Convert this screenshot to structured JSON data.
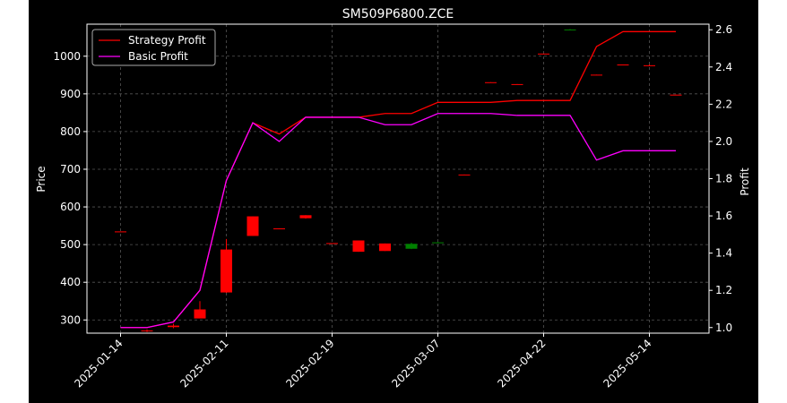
{
  "chart_data": {
    "type": "candlestick+line",
    "title": "SM509P6800.ZCE",
    "xlabel": "",
    "ylabel_left": "Price",
    "ylabel_right": "Profit",
    "ylim_left": [
      265,
      1085
    ],
    "ylim_right": [
      0.97,
      2.63
    ],
    "left_ticks": [
      300,
      400,
      500,
      600,
      700,
      800,
      900,
      1000
    ],
    "right_ticks": [
      1.0,
      1.2,
      1.4,
      1.6,
      1.8,
      2.0,
      2.2,
      2.4,
      2.6
    ],
    "x_tick_labels": [
      "2025-01-14",
      "2025-02-11",
      "2025-02-19",
      "2025-03-07",
      "2025-04-22",
      "2025-05-14"
    ],
    "x_tick_indices": [
      0,
      4,
      8,
      12,
      16,
      20
    ],
    "grid": true,
    "legend_position": "top-left",
    "colors": {
      "background": "#000000",
      "up": "#008000",
      "down": "#ff0000",
      "strategy": "#ff0000",
      "basic": "#ff00ff",
      "grid": "#555555"
    },
    "candles": [
      {
        "o": 535,
        "h": 535,
        "l": 535,
        "c": 534
      },
      {
        "o": 272,
        "h": 275,
        "l": 268,
        "c": 270
      },
      {
        "o": 285,
        "h": 290,
        "l": 278,
        "c": 281
      },
      {
        "o": 328,
        "h": 350,
        "l": 305,
        "c": 304
      },
      {
        "o": 487,
        "h": 515,
        "l": 372,
        "c": 373
      },
      {
        "o": 575,
        "h": 575,
        "l": 523,
        "c": 523
      },
      {
        "o": 543,
        "h": 543,
        "l": 542,
        "c": 542
      },
      {
        "o": 578,
        "h": 578,
        "l": 569,
        "c": 570
      },
      {
        "o": 504,
        "h": 504,
        "l": 503,
        "c": 503
      },
      {
        "o": 511,
        "h": 511,
        "l": 481,
        "c": 481
      },
      {
        "o": 503,
        "h": 503,
        "l": 483,
        "c": 483
      },
      {
        "o": 489,
        "h": 505,
        "l": 488,
        "c": 502
      },
      {
        "o": 505,
        "h": 507,
        "l": 504,
        "c": 506
      },
      {
        "o": 686,
        "h": 686,
        "l": 685,
        "c": 685
      },
      {
        "o": 931,
        "h": 931,
        "l": 930,
        "c": 930
      },
      {
        "o": 926,
        "h": 926,
        "l": 925,
        "c": 925
      },
      {
        "o": 1007,
        "h": 1007,
        "l": 1006,
        "c": 1006
      },
      {
        "o": 1070,
        "h": 1072,
        "l": 1069,
        "c": 1071
      },
      {
        "o": 951,
        "h": 951,
        "l": 950,
        "c": 950
      },
      {
        "o": 978,
        "h": 978,
        "l": 977,
        "c": 977
      },
      {
        "o": 976,
        "h": 978,
        "l": 974,
        "c": 975
      },
      {
        "o": 898,
        "h": 898,
        "l": 897,
        "c": 897
      }
    ],
    "series": [
      {
        "name": "Strategy Profit",
        "values": [
          1.0,
          1.0,
          1.03,
          1.2,
          1.79,
          2.1,
          2.04,
          2.13,
          2.13,
          2.13,
          2.15,
          2.15,
          2.21,
          2.21,
          2.21,
          2.22,
          2.22,
          2.22,
          2.51,
          2.59,
          2.59,
          2.59
        ]
      },
      {
        "name": "Basic Profit",
        "values": [
          1.0,
          1.0,
          1.03,
          1.2,
          1.79,
          2.1,
          2.0,
          2.13,
          2.13,
          2.13,
          2.09,
          2.09,
          2.15,
          2.15,
          2.15,
          2.14,
          2.14,
          2.14,
          1.9,
          1.95,
          1.95,
          1.95
        ]
      }
    ]
  }
}
